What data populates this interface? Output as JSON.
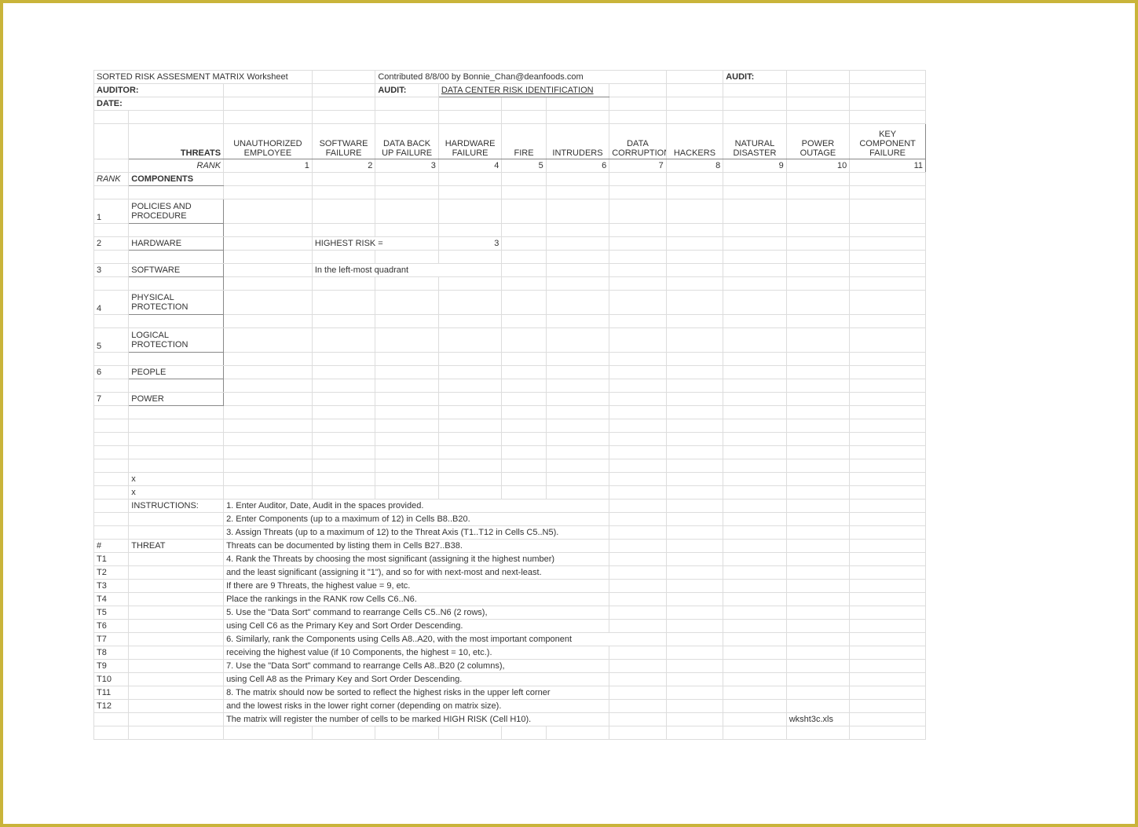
{
  "header": {
    "title": "SORTED RISK ASSESMENT MATRIX  Worksheet",
    "contributed": "Contributed 8/8/00 by Bonnie_Chan@deanfoods.com",
    "audit_label_right": "AUDIT:",
    "auditor_label": "AUDITOR:",
    "audit_label": "AUDIT:",
    "audit_value": "DATA CENTER RISK IDENTIFICATION",
    "date_label": "DATE:"
  },
  "threats_label": "THREATS",
  "rank_label": "RANK",
  "components_label": "COMPONENTS",
  "threats": [
    "UNAUTHORIZED EMPLOYEE",
    "SOFTWARE FAILURE",
    "DATA BACK UP FAILURE",
    "HARDWARE FAILURE",
    "FIRE",
    "INTRUDERS",
    "DATA CORRUPTION",
    "HACKERS",
    "NATURAL DISASTER",
    "POWER OUTAGE",
    "KEY COMPONENT FAILURE"
  ],
  "ranks": [
    "1",
    "2",
    "3",
    "4",
    "5",
    "6",
    "7",
    "8",
    "9",
    "10",
    "11"
  ],
  "components": [
    {
      "n": "1",
      "label": "POLICIES AND PROCEDURE"
    },
    {
      "n": "2",
      "label": "HARDWARE"
    },
    {
      "n": "3",
      "label": "SOFTWARE"
    },
    {
      "n": "4",
      "label": "PHYSICAL PROTECTION"
    },
    {
      "n": "5",
      "label": "LOGICAL PROTECTION"
    },
    {
      "n": "6",
      "label": "PEOPLE"
    },
    {
      "n": "7",
      "label": "POWER"
    }
  ],
  "highest_risk_label": "HIGHEST RISK =",
  "highest_risk_value": "3",
  "quadrant_note": "In the left-most quadrant",
  "x_marks": [
    "x",
    "x"
  ],
  "instructions_label": "INSTRUCTIONS:",
  "instructions": [
    "1.  Enter Auditor, Date, Audit in the spaces provided.",
    "2.  Enter Components (up to a maximum of 12) in Cells B8..B20.",
    "3.  Assign Threats (up to a maximum of 12) to the Threat Axis (T1..T12 in Cells C5..N5).",
    "     Threats can be documented by listing them in Cells B27..B38.",
    "4.  Rank the Threats by choosing the most significant (assigning it the highest number)",
    "     and the least significant (assigning it \"1\"), and so for with next-most and next-least.",
    "     If there are 9 Threats, the highest value = 9, etc.",
    "     Place the rankings in the RANK row Cells C6..N6.",
    "5.  Use the \"Data Sort\" command to rearrange Cells C5..N6 (2 rows),",
    "     using Cell C6 as the Primary Key and Sort Order Descending.",
    "6.  Similarly, rank the Components using Cells A8..A20, with the most important component",
    "     receiving the highest value (if 10 Components, the highest = 10, etc.).",
    "7.  Use the \"Data Sort\" command to rearrange Cells A8..B20 (2 columns),",
    "     using Cell A8 as the Primary Key and Sort Order Descending.",
    "8.  The matrix should now be sorted to reflect the highest risks in the upper left corner",
    "     and the lowest risks in the lower right corner (depending on matrix size).",
    "     The matrix will register the number of cells to be marked HIGH RISK (Cell H10)."
  ],
  "threat_list_header_num": "#",
  "threat_list_header_label": "THREAT",
  "threat_ids": [
    "T1",
    "T2",
    "T3",
    "T4",
    "T5",
    "T6",
    "T7",
    "T8",
    "T9",
    "T10",
    "T11",
    "T12"
  ],
  "filename": "wksht3c.xls",
  "colors": {
    "border": "#c9b43a",
    "grid": "#dddddd",
    "strong_grid": "#888888"
  }
}
